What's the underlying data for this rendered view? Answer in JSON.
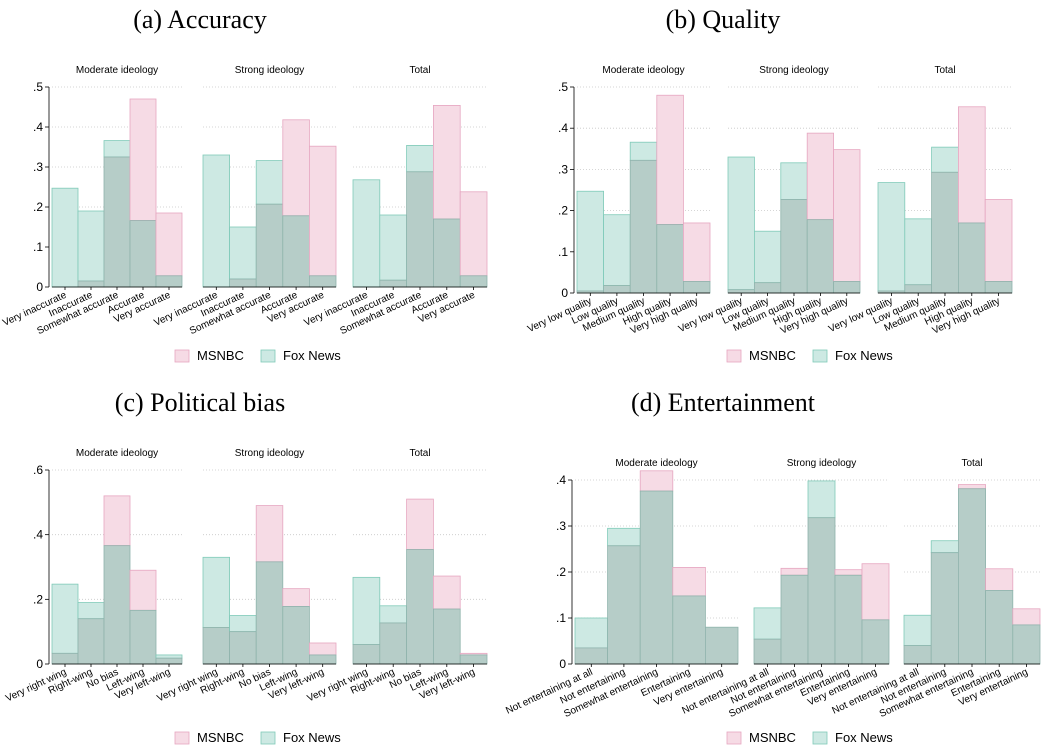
{
  "colors": {
    "msnbc_fill": "#f6dbe5",
    "msnbc_stroke": "#e6a6c0",
    "fox_fill": "#cde9e3",
    "fox_stroke": "#7fcab8",
    "overlap_fill": "#b6cdc8",
    "grid": "#c8c8c8"
  },
  "legend": {
    "msnbc": "MSNBC",
    "fox": "Fox News"
  },
  "chart_data": [
    {
      "title": "(a) Accuracy",
      "type": "bar",
      "ylim": [
        0,
        0.5
      ],
      "yticks": [
        0,
        0.1,
        0.2,
        0.3,
        0.4,
        0.5
      ],
      "ytick_labels": [
        "0",
        ".1",
        ".2",
        ".3",
        ".4",
        ".5"
      ],
      "categories": [
        "Very inaccurate",
        "Inaccurate",
        "Somewhat accurate",
        "Accurate",
        "Very accurate"
      ],
      "facets": [
        {
          "label": "Moderate ideology",
          "series": [
            {
              "name": "MSNBC",
              "values": [
                0.0,
                0.015,
                0.325,
                0.47,
                0.185
              ]
            },
            {
              "name": "Fox News",
              "values": [
                0.247,
                0.19,
                0.366,
                0.166,
                0.028
              ]
            }
          ]
        },
        {
          "label": "Strong ideology",
          "series": [
            {
              "name": "MSNBC",
              "values": [
                0.0,
                0.02,
                0.207,
                0.418,
                0.352
              ]
            },
            {
              "name": "Fox News",
              "values": [
                0.33,
                0.15,
                0.316,
                0.178,
                0.028
              ]
            }
          ]
        },
        {
          "label": "Total",
          "series": [
            {
              "name": "MSNBC",
              "values": [
                0.0,
                0.017,
                0.288,
                0.454,
                0.238
              ]
            },
            {
              "name": "Fox News",
              "values": [
                0.268,
                0.18,
                0.354,
                0.17,
                0.028
              ]
            }
          ]
        }
      ]
    },
    {
      "title": "(b) Quality",
      "type": "bar",
      "ylim": [
        0,
        0.5
      ],
      "yticks": [
        0,
        0.1,
        0.2,
        0.3,
        0.4,
        0.5
      ],
      "ytick_labels": [
        "0",
        ".1",
        ".2",
        ".3",
        ".4",
        ".5"
      ],
      "categories": [
        "Very low quality",
        "Low quality",
        "Medium quality",
        "High quality",
        "Very high quality"
      ],
      "facets": [
        {
          "label": "Moderate ideology",
          "series": [
            {
              "name": "MSNBC",
              "values": [
                0.005,
                0.018,
                0.322,
                0.48,
                0.17
              ]
            },
            {
              "name": "Fox News",
              "values": [
                0.247,
                0.19,
                0.366,
                0.166,
                0.028
              ]
            }
          ]
        },
        {
          "label": "Strong ideology",
          "series": [
            {
              "name": "MSNBC",
              "values": [
                0.008,
                0.025,
                0.227,
                0.388,
                0.348
              ]
            },
            {
              "name": "Fox News",
              "values": [
                0.33,
                0.15,
                0.316,
                0.178,
                0.028
              ]
            }
          ]
        },
        {
          "label": "Total",
          "series": [
            {
              "name": "MSNBC",
              "values": [
                0.005,
                0.02,
                0.293,
                0.452,
                0.227
              ]
            },
            {
              "name": "Fox News",
              "values": [
                0.268,
                0.18,
                0.354,
                0.17,
                0.028
              ]
            }
          ]
        }
      ]
    },
    {
      "title": "(c) Political bias",
      "type": "bar",
      "ylim": [
        0,
        0.6
      ],
      "yticks": [
        0,
        0.2,
        0.4,
        0.6
      ],
      "ytick_labels": [
        "0",
        ".2",
        ".4",
        ".6"
      ],
      "categories": [
        "Very right wing",
        "Right-wing",
        "No bias",
        "Left-wing",
        "Very left-wing"
      ],
      "facets": [
        {
          "label": "Moderate ideology",
          "series": [
            {
              "name": "MSNBC",
              "values": [
                0.033,
                0.14,
                0.52,
                0.29,
                0.018
              ]
            },
            {
              "name": "Fox News",
              "values": [
                0.247,
                0.19,
                0.366,
                0.166,
                0.028
              ]
            }
          ]
        },
        {
          "label": "Strong ideology",
          "series": [
            {
              "name": "MSNBC",
              "values": [
                0.113,
                0.1,
                0.49,
                0.233,
                0.065
              ]
            },
            {
              "name": "Fox News",
              "values": [
                0.33,
                0.15,
                0.316,
                0.178,
                0.028
              ]
            }
          ]
        },
        {
          "label": "Total",
          "series": [
            {
              "name": "MSNBC",
              "values": [
                0.06,
                0.127,
                0.51,
                0.272,
                0.033
              ]
            },
            {
              "name": "Fox News",
              "values": [
                0.268,
                0.18,
                0.354,
                0.17,
                0.028
              ]
            }
          ]
        }
      ]
    },
    {
      "title": "(d) Entertainment",
      "type": "bar",
      "ylim": [
        0,
        0.4
      ],
      "yticks": [
        0,
        0.1,
        0.2,
        0.3,
        0.4
      ],
      "ytick_labels": [
        "0",
        ".1",
        ".2",
        ".3",
        ".4"
      ],
      "categories": [
        "Not entertaining at all",
        "Not entertaining",
        "Somewhat entertaining",
        "Entertaining",
        "Very entertaining"
      ],
      "facets": [
        {
          "label": "Moderate ideology",
          "series": [
            {
              "name": "MSNBC",
              "values": [
                0.035,
                0.257,
                0.42,
                0.21,
                0.08
              ]
            },
            {
              "name": "Fox News",
              "values": [
                0.1,
                0.295,
                0.376,
                0.148,
                0.08
              ]
            }
          ]
        },
        {
          "label": "Strong ideology",
          "series": [
            {
              "name": "MSNBC",
              "values": [
                0.054,
                0.208,
                0.318,
                0.205,
                0.218
              ]
            },
            {
              "name": "Fox News",
              "values": [
                0.122,
                0.193,
                0.398,
                0.193,
                0.096
              ]
            }
          ]
        },
        {
          "label": "Total",
          "series": [
            {
              "name": "MSNBC",
              "values": [
                0.04,
                0.242,
                0.39,
                0.207,
                0.12
              ]
            },
            {
              "name": "Fox News",
              "values": [
                0.106,
                0.268,
                0.381,
                0.16,
                0.085
              ]
            }
          ]
        }
      ]
    }
  ]
}
